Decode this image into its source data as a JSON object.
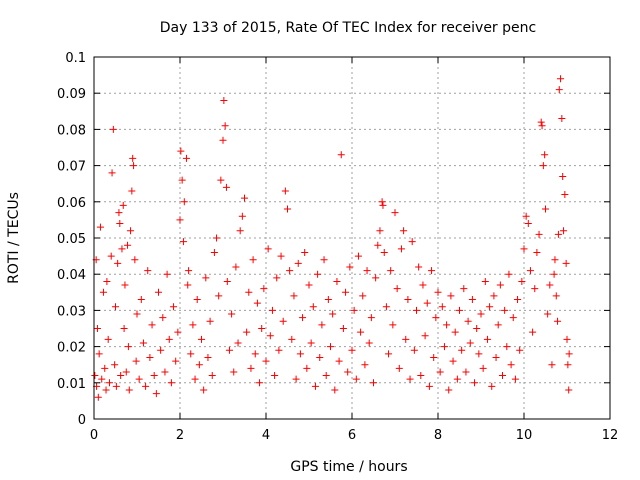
{
  "chart_data": {
    "type": "scatter",
    "title": "Day 133 of 2015, Rate Of TEC Index for receiver penc",
    "xlabel": "GPS time / hours",
    "ylabel": "ROTI / TECUs",
    "xlim": [
      0,
      12
    ],
    "ylim": [
      0,
      0.1
    ],
    "grid": true,
    "marker": "+",
    "color": "#ff0000",
    "x_ticks": [
      {
        "value": 0,
        "label": "0"
      },
      {
        "value": 2,
        "label": "2"
      },
      {
        "value": 4,
        "label": "4"
      },
      {
        "value": 6,
        "label": "6"
      },
      {
        "value": 8,
        "label": "8"
      },
      {
        "value": 10,
        "label": "10"
      },
      {
        "value": 12,
        "label": "12"
      }
    ],
    "y_ticks": [
      {
        "value": 0,
        "label": "0"
      },
      {
        "value": 0.01,
        "label": "0.01"
      },
      {
        "value": 0.02,
        "label": "0.02"
      },
      {
        "value": 0.03,
        "label": "0.03"
      },
      {
        "value": 0.04,
        "label": "0.04"
      },
      {
        "value": 0.05,
        "label": "0.05"
      },
      {
        "value": 0.06,
        "label": "0.06"
      },
      {
        "value": 0.07,
        "label": "0.07"
      },
      {
        "value": 0.08,
        "label": "0.08"
      },
      {
        "value": 0.09,
        "label": "0.09"
      },
      {
        "value": 0.1,
        "label": "0.1"
      }
    ],
    "series": [
      {
        "name": "ROTI",
        "points": [
          [
            0.02,
            0.012
          ],
          [
            0.05,
            0.044
          ],
          [
            0.06,
            0.009
          ],
          [
            0.08,
            0.025
          ],
          [
            0.1,
            0.006
          ],
          [
            0.12,
            0.018
          ],
          [
            0.15,
            0.053
          ],
          [
            0.18,
            0.011
          ],
          [
            0.22,
            0.035
          ],
          [
            0.25,
            0.014
          ],
          [
            0.28,
            0.008
          ],
          [
            0.3,
            0.038
          ],
          [
            0.33,
            0.022
          ],
          [
            0.36,
            0.01
          ],
          [
            0.4,
            0.045
          ],
          [
            0.42,
            0.068
          ],
          [
            0.45,
            0.08
          ],
          [
            0.48,
            0.015
          ],
          [
            0.5,
            0.031
          ],
          [
            0.52,
            0.009
          ],
          [
            0.55,
            0.043
          ],
          [
            0.58,
            0.057
          ],
          [
            0.6,
            0.054
          ],
          [
            0.62,
            0.012
          ],
          [
            0.65,
            0.047
          ],
          [
            0.68,
            0.059
          ],
          [
            0.7,
            0.025
          ],
          [
            0.72,
            0.037
          ],
          [
            0.75,
            0.013
          ],
          [
            0.78,
            0.048
          ],
          [
            0.8,
            0.02
          ],
          [
            0.82,
            0.008
          ],
          [
            0.85,
            0.052
          ],
          [
            0.88,
            0.063
          ],
          [
            0.9,
            0.072
          ],
          [
            0.92,
            0.07
          ],
          [
            0.95,
            0.044
          ],
          [
            0.98,
            0.016
          ],
          [
            1.0,
            0.029
          ],
          [
            1.05,
            0.011
          ],
          [
            1.1,
            0.033
          ],
          [
            1.15,
            0.021
          ],
          [
            1.2,
            0.009
          ],
          [
            1.25,
            0.041
          ],
          [
            1.3,
            0.017
          ],
          [
            1.35,
            0.026
          ],
          [
            1.4,
            0.012
          ],
          [
            1.45,
            0.007
          ],
          [
            1.5,
            0.035
          ],
          [
            1.55,
            0.019
          ],
          [
            1.6,
            0.028
          ],
          [
            1.65,
            0.013
          ],
          [
            1.7,
            0.04
          ],
          [
            1.75,
            0.022
          ],
          [
            1.8,
            0.01
          ],
          [
            1.85,
            0.031
          ],
          [
            1.9,
            0.016
          ],
          [
            1.95,
            0.024
          ],
          [
            2.0,
            0.055
          ],
          [
            2.02,
            0.074
          ],
          [
            2.05,
            0.066
          ],
          [
            2.08,
            0.049
          ],
          [
            2.1,
            0.06
          ],
          [
            2.15,
            0.072
          ],
          [
            2.18,
            0.037
          ],
          [
            2.2,
            0.041
          ],
          [
            2.25,
            0.018
          ],
          [
            2.3,
            0.026
          ],
          [
            2.35,
            0.011
          ],
          [
            2.4,
            0.033
          ],
          [
            2.45,
            0.015
          ],
          [
            2.5,
            0.022
          ],
          [
            2.55,
            0.008
          ],
          [
            2.6,
            0.039
          ],
          [
            2.65,
            0.017
          ],
          [
            2.7,
            0.027
          ],
          [
            2.75,
            0.012
          ],
          [
            2.8,
            0.046
          ],
          [
            2.85,
            0.05
          ],
          [
            2.9,
            0.034
          ],
          [
            2.95,
            0.066
          ],
          [
            3.0,
            0.077
          ],
          [
            3.02,
            0.088
          ],
          [
            3.05,
            0.081
          ],
          [
            3.08,
            0.064
          ],
          [
            3.1,
            0.038
          ],
          [
            3.15,
            0.019
          ],
          [
            3.2,
            0.029
          ],
          [
            3.25,
            0.013
          ],
          [
            3.3,
            0.042
          ],
          [
            3.35,
            0.021
          ],
          [
            3.4,
            0.052
          ],
          [
            3.45,
            0.056
          ],
          [
            3.5,
            0.061
          ],
          [
            3.55,
            0.024
          ],
          [
            3.6,
            0.035
          ],
          [
            3.65,
            0.014
          ],
          [
            3.7,
            0.044
          ],
          [
            3.75,
            0.018
          ],
          [
            3.8,
            0.032
          ],
          [
            3.85,
            0.01
          ],
          [
            3.9,
            0.025
          ],
          [
            3.95,
            0.036
          ],
          [
            4.0,
            0.016
          ],
          [
            4.05,
            0.047
          ],
          [
            4.1,
            0.023
          ],
          [
            4.15,
            0.03
          ],
          [
            4.2,
            0.012
          ],
          [
            4.25,
            0.039
          ],
          [
            4.3,
            0.019
          ],
          [
            4.35,
            0.045
          ],
          [
            4.4,
            0.027
          ],
          [
            4.45,
            0.063
          ],
          [
            4.5,
            0.058
          ],
          [
            4.55,
            0.041
          ],
          [
            4.6,
            0.022
          ],
          [
            4.65,
            0.034
          ],
          [
            4.7,
            0.011
          ],
          [
            4.75,
            0.043
          ],
          [
            4.8,
            0.018
          ],
          [
            4.85,
            0.028
          ],
          [
            4.9,
            0.046
          ],
          [
            4.95,
            0.014
          ],
          [
            5.0,
            0.037
          ],
          [
            5.05,
            0.021
          ],
          [
            5.1,
            0.031
          ],
          [
            5.15,
            0.009
          ],
          [
            5.2,
            0.04
          ],
          [
            5.25,
            0.017
          ],
          [
            5.3,
            0.026
          ],
          [
            5.35,
            0.044
          ],
          [
            5.4,
            0.012
          ],
          [
            5.45,
            0.033
          ],
          [
            5.5,
            0.02
          ],
          [
            5.55,
            0.029
          ],
          [
            5.6,
            0.008
          ],
          [
            5.65,
            0.038
          ],
          [
            5.7,
            0.016
          ],
          [
            5.75,
            0.073
          ],
          [
            5.8,
            0.025
          ],
          [
            5.85,
            0.035
          ],
          [
            5.9,
            0.013
          ],
          [
            5.95,
            0.042
          ],
          [
            6.0,
            0.019
          ],
          [
            6.05,
            0.03
          ],
          [
            6.1,
            0.011
          ],
          [
            6.15,
            0.045
          ],
          [
            6.2,
            0.024
          ],
          [
            6.25,
            0.034
          ],
          [
            6.3,
            0.015
          ],
          [
            6.35,
            0.041
          ],
          [
            6.4,
            0.021
          ],
          [
            6.45,
            0.028
          ],
          [
            6.5,
            0.01
          ],
          [
            6.55,
            0.039
          ],
          [
            6.6,
            0.048
          ],
          [
            6.65,
            0.052
          ],
          [
            6.7,
            0.06
          ],
          [
            6.72,
            0.059
          ],
          [
            6.75,
            0.046
          ],
          [
            6.8,
            0.031
          ],
          [
            6.85,
            0.018
          ],
          [
            6.9,
            0.041
          ],
          [
            6.95,
            0.026
          ],
          [
            7.0,
            0.057
          ],
          [
            7.05,
            0.036
          ],
          [
            7.1,
            0.014
          ],
          [
            7.15,
            0.047
          ],
          [
            7.2,
            0.052
          ],
          [
            7.25,
            0.022
          ],
          [
            7.3,
            0.033
          ],
          [
            7.35,
            0.011
          ],
          [
            7.4,
            0.049
          ],
          [
            7.45,
            0.019
          ],
          [
            7.5,
            0.03
          ],
          [
            7.55,
            0.042
          ],
          [
            7.6,
            0.012
          ],
          [
            7.65,
            0.037
          ],
          [
            7.7,
            0.023
          ],
          [
            7.75,
            0.032
          ],
          [
            7.8,
            0.009
          ],
          [
            7.85,
            0.041
          ],
          [
            7.9,
            0.017
          ],
          [
            7.95,
            0.028
          ],
          [
            8.0,
            0.035
          ],
          [
            8.05,
            0.013
          ],
          [
            8.1,
            0.031
          ],
          [
            8.15,
            0.02
          ],
          [
            8.2,
            0.026
          ],
          [
            8.25,
            0.008
          ],
          [
            8.3,
            0.034
          ],
          [
            8.35,
            0.016
          ],
          [
            8.4,
            0.024
          ],
          [
            8.45,
            0.011
          ],
          [
            8.5,
            0.03
          ],
          [
            8.55,
            0.019
          ],
          [
            8.6,
            0.036
          ],
          [
            8.65,
            0.013
          ],
          [
            8.7,
            0.027
          ],
          [
            8.75,
            0.021
          ],
          [
            8.8,
            0.033
          ],
          [
            8.85,
            0.01
          ],
          [
            8.9,
            0.025
          ],
          [
            8.95,
            0.018
          ],
          [
            9.0,
            0.029
          ],
          [
            9.05,
            0.014
          ],
          [
            9.1,
            0.038
          ],
          [
            9.15,
            0.022
          ],
          [
            9.2,
            0.031
          ],
          [
            9.25,
            0.009
          ],
          [
            9.3,
            0.034
          ],
          [
            9.35,
            0.017
          ],
          [
            9.4,
            0.026
          ],
          [
            9.45,
            0.037
          ],
          [
            9.5,
            0.012
          ],
          [
            9.55,
            0.03
          ],
          [
            9.6,
            0.02
          ],
          [
            9.65,
            0.04
          ],
          [
            9.7,
            0.015
          ],
          [
            9.75,
            0.028
          ],
          [
            9.8,
            0.011
          ],
          [
            9.85,
            0.033
          ],
          [
            9.9,
            0.019
          ],
          [
            9.95,
            0.038
          ],
          [
            10.0,
            0.047
          ],
          [
            10.05,
            0.056
          ],
          [
            10.1,
            0.054
          ],
          [
            10.15,
            0.041
          ],
          [
            10.2,
            0.024
          ],
          [
            10.25,
            0.036
          ],
          [
            10.3,
            0.046
          ],
          [
            10.35,
            0.051
          ],
          [
            10.4,
            0.082
          ],
          [
            10.42,
            0.081
          ],
          [
            10.45,
            0.07
          ],
          [
            10.48,
            0.073
          ],
          [
            10.5,
            0.058
          ],
          [
            10.55,
            0.029
          ],
          [
            10.6,
            0.037
          ],
          [
            10.65,
            0.015
          ],
          [
            10.7,
            0.04
          ],
          [
            10.72,
            0.044
          ],
          [
            10.75,
            0.034
          ],
          [
            10.78,
            0.027
          ],
          [
            10.8,
            0.051
          ],
          [
            10.82,
            0.091
          ],
          [
            10.85,
            0.094
          ],
          [
            10.88,
            0.083
          ],
          [
            10.9,
            0.067
          ],
          [
            10.92,
            0.052
          ],
          [
            10.95,
            0.062
          ],
          [
            10.98,
            0.043
          ],
          [
            11.0,
            0.022
          ],
          [
            11.02,
            0.015
          ],
          [
            11.04,
            0.008
          ],
          [
            11.05,
            0.018
          ]
        ]
      }
    ]
  }
}
